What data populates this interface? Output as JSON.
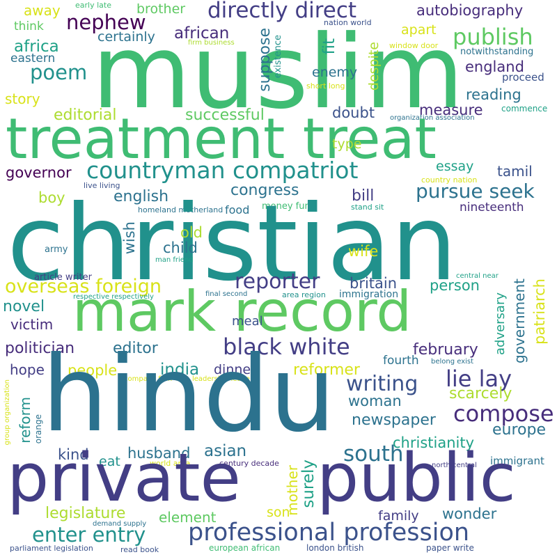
{
  "words": {
    "muslim": "muslim",
    "treatment_treat": "treatment treat",
    "christian": "christian",
    "mark_record": "mark record",
    "hindu": "hindu",
    "private": "private",
    "public": "public",
    "countryman_compatriot": "countryman compatriot",
    "directly_direct": "directly direct",
    "autobiography": "autobiography",
    "nephew": "nephew",
    "publish": "publish",
    "poem": "poem",
    "african": "african",
    "africa": "africa",
    "eastern": "eastern",
    "away": "away",
    "think": "think",
    "brother": "brother",
    "certainly": "certainly",
    "early_late": "early late",
    "nation_world": "nation world",
    "firm_business": "firm business",
    "window_door": "window door",
    "notwithstanding": "notwithstanding",
    "apart": "apart",
    "england": "england",
    "proceed": "proceed",
    "reading": "reading",
    "commence": "commence",
    "measure": "measure",
    "story": "story",
    "editorial": "editorial",
    "successful": "successful",
    "doubt": "doubt",
    "enemy": "enemy",
    "short_long": "short long",
    "organization_association": "organization association",
    "suppose": "suppose",
    "existence": "existence",
    "fit": "fit",
    "despite": "despite",
    "type": "type",
    "essay": "essay",
    "tamil": "tamil",
    "governor": "governor",
    "country_nation": "country nation",
    "live_living": "live living",
    "boy": "boy",
    "english": "english",
    "congress": "congress",
    "bill": "bill",
    "pursue_seek": "pursue seek",
    "nineteenth": "nineteenth",
    "homeland_motherland": "homeland motherland",
    "food": "food",
    "money_fund": "money fund",
    "stand_sit": "stand sit",
    "wish": "wish",
    "old": "old",
    "child": "child",
    "army": "army",
    "man_friend": "man friend",
    "wife": "wife",
    "article_writer": "article writer",
    "overseas_foreign": "overseas foreign",
    "reporter": "reporter",
    "britain": "britain",
    "person": "person",
    "government": "government",
    "patriarch": "patriarch",
    "central_near": "central near",
    "respective_respectively": "respective respectively",
    "final_second": "final second",
    "area_region": "area region",
    "immigration": "immigration",
    "novel": "novel",
    "victim": "victim",
    "meal": "meal",
    "adversary": "adversary",
    "black_white": "black white",
    "politician": "politician",
    "editor": "editor",
    "february": "february",
    "hope": "hope",
    "people": "people",
    "india": "india",
    "dinner": "dinner",
    "reformer": "reformer",
    "fourth": "fourth",
    "belong_exist": "belong exist",
    "company_firm": "company firm",
    "leadership_leader": "leadership leader",
    "writing": "writing",
    "lie_lay": "lie lay",
    "group_organization": "group organization",
    "reform": "reform",
    "orange": "orange",
    "eat": "eat",
    "woman": "woman",
    "scarcely": "scarcely",
    "compose": "compose",
    "newspaper": "newspaper",
    "europe": "europe",
    "christianity": "christianity",
    "kind": "kind",
    "husband": "husband",
    "asian": "asian",
    "south": "south",
    "immigrant": "immigrant",
    "world_area": "world area",
    "century_decade": "century decade",
    "north_central": "north central",
    "mother": "mother",
    "surely": "surely",
    "legislature": "legislature",
    "element": "element",
    "son": "son",
    "family": "family",
    "wonder": "wonder",
    "demand_supply": "demand supply",
    "enter_entry": "enter entry",
    "professional_profession": "professional profession",
    "parliament_legislation": "parliament legislation",
    "read_book": "read book",
    "european_african": "european african",
    "london_british": "london british",
    "paper_write": "paper write"
  },
  "colors": {
    "yellow": "#d8e219",
    "yellowgreen": "#addc30",
    "lightgreen": "#5ec962",
    "green": "#3fbc73",
    "teal": "#21918c",
    "tealgreen": "#1fa187",
    "blue": "#2c728e",
    "slate": "#3b528b",
    "indigo": "#433e85",
    "purple": "#472d7b",
    "darkpurple": "#440154",
    "background": "#ffffff"
  }
}
